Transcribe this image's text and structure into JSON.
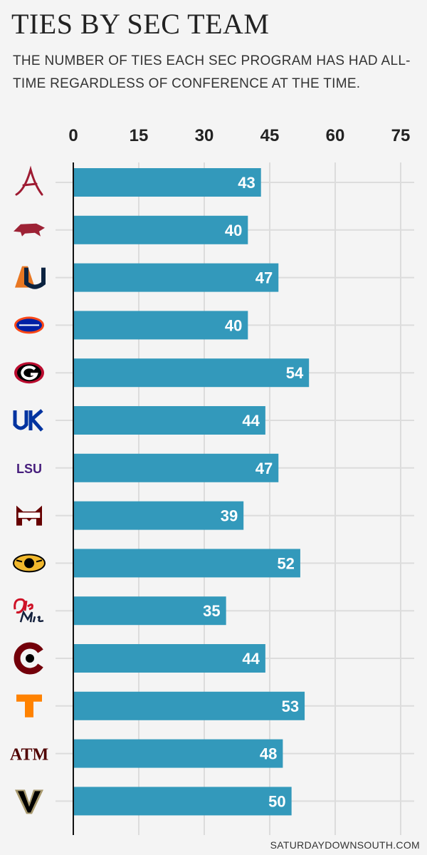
{
  "title": "TIES BY SEC TEAM",
  "subtitle": "THE NUMBER OF TIES EACH SEC PROGRAM HAS HAD ALL-TIME REGARDLESS OF CONFERENCE AT THE TIME.",
  "source": "SATURDAYDOWNSOUTH.COM",
  "colors": {
    "bar": "#3399bb",
    "grid": "#dcdcdc",
    "axis": "#111111",
    "background": "#f4f4f4"
  },
  "team_logos": [
    {
      "icon": "alabama-script-a-logo",
      "color": "#9e1b32"
    },
    {
      "icon": "arkansas-razorback-logo",
      "color": "#9d2235"
    },
    {
      "icon": "auburn-au-logo",
      "color": "#0c2340"
    },
    {
      "icon": "florida-gator-logo",
      "color": "#0021a5"
    },
    {
      "icon": "georgia-g-logo",
      "color": "#ba0c2f"
    },
    {
      "icon": "kentucky-uk-logo",
      "color": "#0033a0"
    },
    {
      "icon": "lsu-logo",
      "color": "#461d7c"
    },
    {
      "icon": "mississippi-state-m-logo",
      "color": "#660000"
    },
    {
      "icon": "missouri-tiger-logo",
      "color": "#f1b82d"
    },
    {
      "icon": "ole-miss-script-logo",
      "color": "#ce1126"
    },
    {
      "icon": "south-carolina-c-logo",
      "color": "#73000a"
    },
    {
      "icon": "tennessee-t-logo",
      "color": "#ff8200"
    },
    {
      "icon": "texas-am-atm-logo",
      "color": "#500000"
    },
    {
      "icon": "vanderbilt-v-logo",
      "color": "#000000"
    }
  ],
  "chart_data": {
    "type": "bar",
    "orientation": "horizontal",
    "values": [
      43,
      40,
      47,
      40,
      54,
      44,
      47,
      39,
      52,
      35,
      44,
      53,
      48,
      50
    ],
    "xlim": [
      0,
      75
    ],
    "x_ticks": [
      "0",
      "15",
      "30",
      "45",
      "60",
      "75"
    ],
    "grid": true,
    "data_labels": true
  }
}
